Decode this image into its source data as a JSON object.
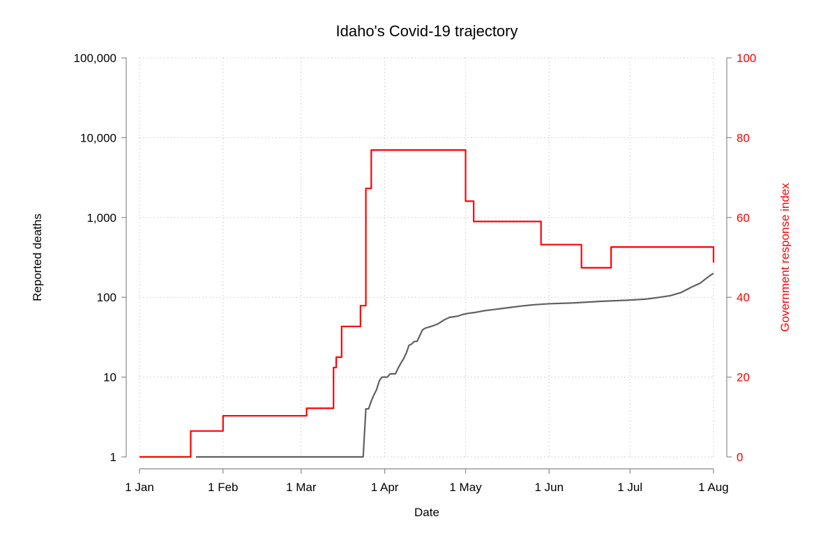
{
  "chart_data": {
    "type": "line",
    "title": "Idaho's Covid-19 trajectory",
    "xlabel": "Date",
    "ylabel": "Reported deaths",
    "y2label": "Government response index",
    "x_ticks": [
      {
        "date": "2020-01-01",
        "label": "1 Jan"
      },
      {
        "date": "2020-02-01",
        "label": "1 Feb"
      },
      {
        "date": "2020-03-01",
        "label": "1 Mar"
      },
      {
        "date": "2020-04-01",
        "label": "1 Apr"
      },
      {
        "date": "2020-05-01",
        "label": "1 May"
      },
      {
        "date": "2020-06-01",
        "label": "1 Jun"
      },
      {
        "date": "2020-07-01",
        "label": "1 Jul"
      },
      {
        "date": "2020-08-01",
        "label": "1 Aug"
      }
    ],
    "xlim": [
      "2020-01-01",
      "2020-08-01"
    ],
    "y_scale": "log",
    "y_ticks": [
      {
        "value": 1,
        "label": "1"
      },
      {
        "value": 10,
        "label": "10"
      },
      {
        "value": 100,
        "label": "100"
      },
      {
        "value": 1000,
        "label": "1,000"
      },
      {
        "value": 10000,
        "label": "10,000"
      },
      {
        "value": 100000,
        "label": "100,000"
      }
    ],
    "ylim": [
      1,
      100000
    ],
    "y2_ticks": [
      {
        "value": 0,
        "label": "0"
      },
      {
        "value": 20,
        "label": "20"
      },
      {
        "value": 40,
        "label": "40"
      },
      {
        "value": 60,
        "label": "60"
      },
      {
        "value": 80,
        "label": "80"
      },
      {
        "value": 100,
        "label": "100"
      }
    ],
    "y2lim": [
      0,
      100
    ],
    "grid": true,
    "series": [
      {
        "axis": "left",
        "color": "#606060",
        "step": false,
        "points": [
          [
            "2020-01-22",
            1
          ],
          [
            "2020-03-24",
            1
          ],
          [
            "2020-03-25",
            4
          ],
          [
            "2020-03-26",
            4
          ],
          [
            "2020-03-27",
            5
          ],
          [
            "2020-03-28",
            6
          ],
          [
            "2020-03-29",
            7
          ],
          [
            "2020-03-30",
            9
          ],
          [
            "2020-03-31",
            10
          ],
          [
            "2020-04-02",
            10
          ],
          [
            "2020-04-03",
            11
          ],
          [
            "2020-04-05",
            11
          ],
          [
            "2020-04-06",
            13
          ],
          [
            "2020-04-07",
            15
          ],
          [
            "2020-04-08",
            17
          ],
          [
            "2020-04-09",
            20
          ],
          [
            "2020-04-10",
            25
          ],
          [
            "2020-04-11",
            26
          ],
          [
            "2020-04-12",
            28
          ],
          [
            "2020-04-13",
            28
          ],
          [
            "2020-04-14",
            33
          ],
          [
            "2020-04-15",
            39
          ],
          [
            "2020-04-16",
            41
          ],
          [
            "2020-04-17",
            42
          ],
          [
            "2020-04-19",
            44
          ],
          [
            "2020-04-21",
            47
          ],
          [
            "2020-04-23",
            52
          ],
          [
            "2020-04-25",
            56
          ],
          [
            "2020-04-28",
            58
          ],
          [
            "2020-04-30",
            61
          ],
          [
            "2020-05-02",
            63
          ],
          [
            "2020-05-05",
            65
          ],
          [
            "2020-05-08",
            68
          ],
          [
            "2020-05-11",
            70
          ],
          [
            "2020-05-14",
            72
          ],
          [
            "2020-05-18",
            75
          ],
          [
            "2020-05-22",
            78
          ],
          [
            "2020-05-27",
            81
          ],
          [
            "2020-06-01",
            83
          ],
          [
            "2020-06-10",
            85
          ],
          [
            "2020-06-20",
            89
          ],
          [
            "2020-06-30",
            92
          ],
          [
            "2020-07-07",
            95
          ],
          [
            "2020-07-12",
            100
          ],
          [
            "2020-07-16",
            105
          ],
          [
            "2020-07-20",
            115
          ],
          [
            "2020-07-24",
            135
          ],
          [
            "2020-07-27",
            150
          ],
          [
            "2020-07-30",
            180
          ],
          [
            "2020-08-01",
            200
          ]
        ]
      },
      {
        "axis": "right",
        "color": "#ff0000",
        "step": true,
        "points": [
          [
            "2020-01-01",
            0
          ],
          [
            "2020-01-20",
            6.5
          ],
          [
            "2020-02-01",
            10.3
          ],
          [
            "2020-03-03",
            12.2
          ],
          [
            "2020-03-13",
            22.4
          ],
          [
            "2020-03-14",
            25
          ],
          [
            "2020-03-16",
            32.7
          ],
          [
            "2020-03-23",
            37.9
          ],
          [
            "2020-03-25",
            67.3
          ],
          [
            "2020-03-26",
            67.3
          ],
          [
            "2020-03-27",
            76.9
          ],
          [
            "2020-05-01",
            64.1
          ],
          [
            "2020-05-04",
            59
          ],
          [
            "2020-05-29",
            53.2
          ],
          [
            "2020-06-13",
            47.4
          ],
          [
            "2020-06-24",
            52.6
          ],
          [
            "2020-08-01",
            48.7
          ]
        ]
      }
    ]
  }
}
